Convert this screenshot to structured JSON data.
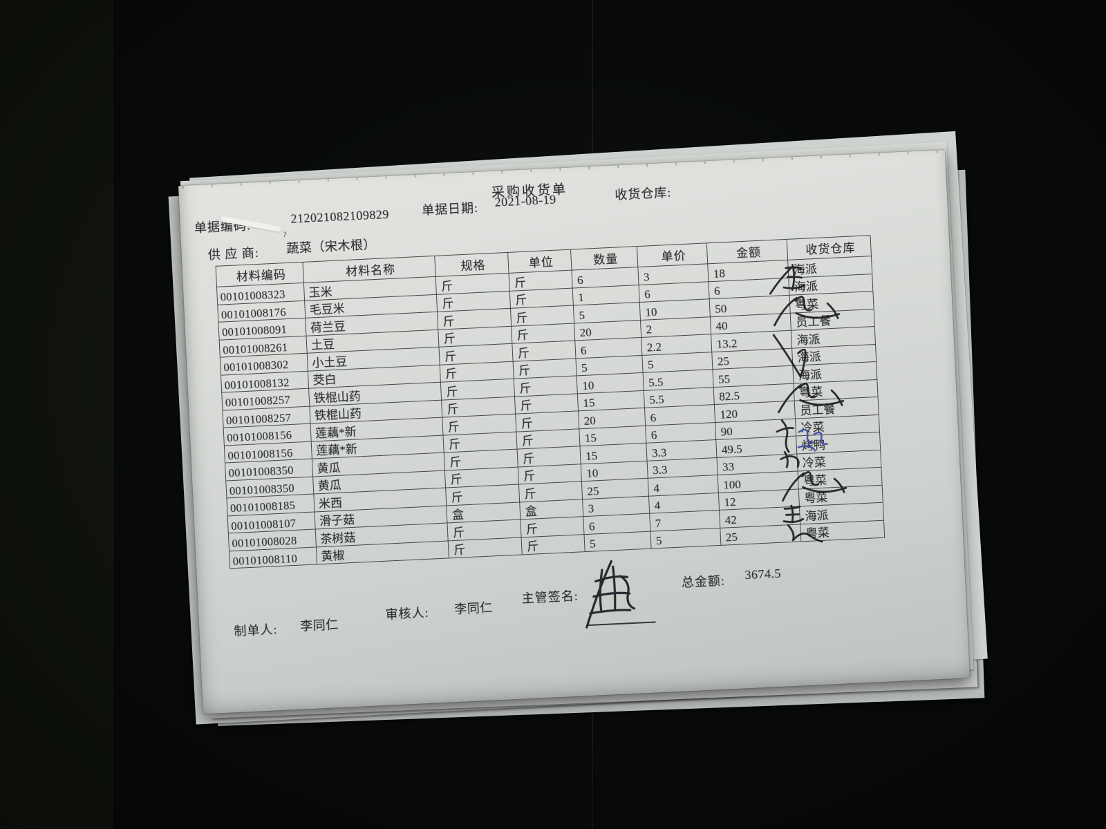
{
  "document": {
    "title": "采购收货单",
    "fields": {
      "doc_code_label": "单据编码:",
      "doc_code": "212021082109829",
      "doc_date_label": "单据日期:",
      "doc_date": "2021-08-19",
      "warehouse_label": "收货仓库:",
      "supplier_label": "供 应 商:",
      "supplier": "蔬菜（宋木根）"
    },
    "table": {
      "headers": [
        "材料编码",
        "材料名称",
        "规格",
        "单位",
        "数量",
        "单价",
        "金额",
        "收货仓库"
      ],
      "rows": [
        [
          "00101008323",
          "玉米",
          "斤",
          "斤",
          "6",
          "3",
          "18",
          "海派"
        ],
        [
          "00101008176",
          "毛豆米",
          "斤",
          "斤",
          "1",
          "6",
          "6",
          "海派"
        ],
        [
          "00101008091",
          "荷兰豆",
          "斤",
          "斤",
          "5",
          "10",
          "50",
          "粤菜"
        ],
        [
          "00101008261",
          "土豆",
          "斤",
          "斤",
          "20",
          "2",
          "40",
          "员工餐"
        ],
        [
          "00101008302",
          "小土豆",
          "斤",
          "斤",
          "6",
          "2.2",
          "13.2",
          "海派"
        ],
        [
          "00101008132",
          "茭白",
          "斤",
          "斤",
          "5",
          "5",
          "25",
          "海派"
        ],
        [
          "00101008257",
          "铁棍山药",
          "斤",
          "斤",
          "10",
          "5.5",
          "55",
          "海派"
        ],
        [
          "00101008257",
          "铁棍山药",
          "斤",
          "斤",
          "15",
          "5.5",
          "82.5",
          "粤菜"
        ],
        [
          "00101008156",
          "莲藕*新",
          "斤",
          "斤",
          "20",
          "6",
          "120",
          "员工餐"
        ],
        [
          "00101008156",
          "莲藕*新",
          "斤",
          "斤",
          "15",
          "6",
          "90",
          "冷菜"
        ],
        [
          "00101008350",
          "黄瓜",
          "斤",
          "斤",
          "15",
          "3.3",
          "49.5",
          "烤鸭"
        ],
        [
          "00101008350",
          "黄瓜",
          "斤",
          "斤",
          "10",
          "3.3",
          "33",
          "冷菜"
        ],
        [
          "00101008185",
          "米西",
          "斤",
          "斤",
          "25",
          "4",
          "100",
          "粤菜"
        ],
        [
          "00101008107",
          "滑子菇",
          "盒",
          "盒",
          "3",
          "4",
          "12",
          "粤菜"
        ],
        [
          "00101008028",
          "茶树菇",
          "斤",
          "斤",
          "6",
          "7",
          "42",
          "海派"
        ],
        [
          "00101008110",
          "黄椒",
          "斤",
          "斤",
          "5",
          "5",
          "25",
          "粤菜"
        ]
      ]
    },
    "footer": {
      "maker_label": "制单人:",
      "maker": "李同仁",
      "reviewer_label": "审核人:",
      "reviewer": "李同仁",
      "signer_label": "主管签名:",
      "total_label": "总金额:",
      "total": "3674.5"
    }
  },
  "colors": {
    "paper": "#d7dad6",
    "background": "#070a07",
    "print_ink": "#2e2f34",
    "pen_ink": "#1b1b22",
    "blue_pen_ink": "#3c4da3"
  }
}
